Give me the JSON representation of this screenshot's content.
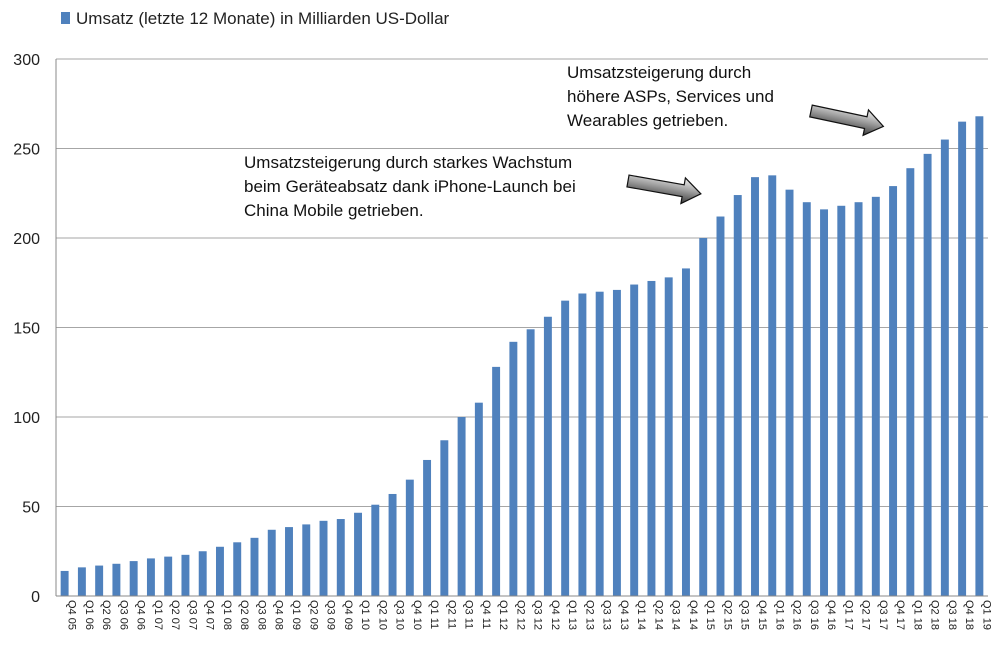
{
  "chart_data": {
    "type": "bar",
    "legend": {
      "label": "Umsatz (letzte 12 Monate) in Milliarden US-Dollar",
      "position": "top-left",
      "color": "#4f81bd"
    },
    "ylim": [
      0,
      300
    ],
    "yticks": [
      0,
      50,
      100,
      150,
      200,
      250,
      300
    ],
    "grid": true,
    "categories": [
      "Q4 05",
      "Q1 06",
      "Q2 06",
      "Q3 06",
      "Q4 06",
      "Q1 07",
      "Q2 07",
      "Q3 07",
      "Q4 07",
      "Q1 08",
      "Q2 08",
      "Q3 08",
      "Q4 08",
      "Q1 09",
      "Q2 09",
      "Q3 09",
      "Q4 09",
      "Q1 10",
      "Q2 10",
      "Q3 10",
      "Q4 10",
      "Q1 11",
      "Q2 11",
      "Q3 11",
      "Q4 11",
      "Q1 12",
      "Q2 12",
      "Q3 12",
      "Q4 12",
      "Q1 13",
      "Q2 13",
      "Q3 13",
      "Q4 13",
      "Q1 14",
      "Q2 14",
      "Q3 14",
      "Q4 14",
      "Q1 15",
      "Q2 15",
      "Q3 15",
      "Q4 15",
      "Q1 16",
      "Q2 16",
      "Q3 16",
      "Q4 16",
      "Q1 17",
      "Q2 17",
      "Q3 17",
      "Q4 17",
      "Q1 18",
      "Q2 18",
      "Q3 18",
      "Q4 18",
      "Q1 19"
    ],
    "values": [
      14,
      16,
      17,
      18,
      19.5,
      21,
      22,
      23,
      25,
      27.5,
      30,
      32.5,
      37,
      38.5,
      40,
      42,
      43,
      46.5,
      51,
      57,
      65,
      76,
      87,
      100,
      108,
      128,
      142,
      149,
      156,
      165,
      169,
      170,
      171,
      174,
      176,
      178,
      183,
      200,
      212,
      224,
      234,
      235,
      227,
      220,
      216,
      218,
      220,
      223,
      229,
      239,
      247,
      255,
      265,
      268
    ],
    "annotations": [
      {
        "lines": [
          "Umsatzsteigerung durch starkes Wachstum",
          "beim Geräteabsatz dank iPhone-Launch bei",
          "China Mobile getrieben."
        ]
      },
      {
        "lines": [
          "Umsatzsteigerung durch",
          "höhere ASPs, Services und",
          "Wearables getrieben."
        ]
      }
    ]
  }
}
